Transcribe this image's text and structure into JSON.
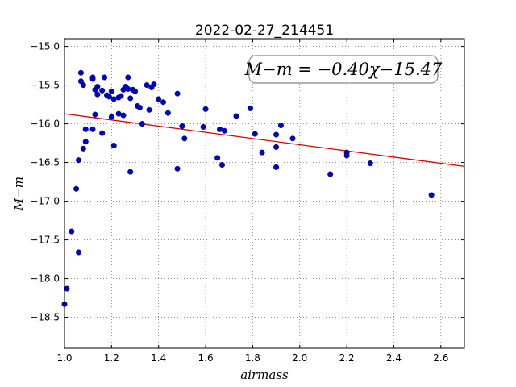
{
  "chart_data": {
    "type": "scatter",
    "title": "2022-02-27_214451",
    "xlabel": "airmass",
    "ylabel": "M−m",
    "xlim": [
      1.0,
      2.7
    ],
    "ylim": [
      -18.9,
      -14.9
    ],
    "y_inverted": true,
    "grid": true,
    "x_ticks": [
      "1.0",
      "1.2",
      "1.4",
      "1.6",
      "1.8",
      "2.0",
      "2.2",
      "2.4",
      "2.6"
    ],
    "x_tick_values": [
      1.0,
      1.2,
      1.4,
      1.6,
      1.8,
      2.0,
      2.2,
      2.4,
      2.6
    ],
    "y_ticks": [
      "−15.0",
      "−15.5",
      "−16.0",
      "−16.5",
      "−17.0",
      "−17.5",
      "−18.0",
      "−18.5"
    ],
    "y_tick_values": [
      -15.0,
      -15.5,
      -16.0,
      -16.5,
      -17.0,
      -17.5,
      -18.0,
      -18.5
    ],
    "annotation": "M−m = −0.40χ−15.47",
    "colors": {
      "points": "#0000cc",
      "fit_line": "#dd0000"
    },
    "fit": {
      "slope": -0.4,
      "intercept": -15.47
    },
    "points": [
      {
        "x": 1.0,
        "y": -18.33
      },
      {
        "x": 1.01,
        "y": -18.13
      },
      {
        "x": 1.03,
        "y": -17.39
      },
      {
        "x": 1.05,
        "y": -16.84
      },
      {
        "x": 1.06,
        "y": -17.66
      },
      {
        "x": 1.06,
        "y": -16.47
      },
      {
        "x": 1.07,
        "y": -15.34
      },
      {
        "x": 1.07,
        "y": -15.45
      },
      {
        "x": 1.08,
        "y": -15.5
      },
      {
        "x": 1.08,
        "y": -16.32
      },
      {
        "x": 1.09,
        "y": -16.23
      },
      {
        "x": 1.09,
        "y": -16.07
      },
      {
        "x": 1.12,
        "y": -15.4
      },
      {
        "x": 1.12,
        "y": -15.42
      },
      {
        "x": 1.12,
        "y": -16.07
      },
      {
        "x": 1.13,
        "y": -15.88
      },
      {
        "x": 1.13,
        "y": -15.56
      },
      {
        "x": 1.14,
        "y": -15.62
      },
      {
        "x": 1.14,
        "y": -15.52
      },
      {
        "x": 1.16,
        "y": -16.12
      },
      {
        "x": 1.16,
        "y": -15.57
      },
      {
        "x": 1.17,
        "y": -15.4
      },
      {
        "x": 1.18,
        "y": -15.63
      },
      {
        "x": 1.19,
        "y": -15.65
      },
      {
        "x": 1.2,
        "y": -15.91
      },
      {
        "x": 1.2,
        "y": -15.58
      },
      {
        "x": 1.21,
        "y": -15.68
      },
      {
        "x": 1.21,
        "y": -16.28
      },
      {
        "x": 1.23,
        "y": -15.66
      },
      {
        "x": 1.23,
        "y": -15.87
      },
      {
        "x": 1.24,
        "y": -15.64
      },
      {
        "x": 1.25,
        "y": -15.89
      },
      {
        "x": 1.25,
        "y": -15.56
      },
      {
        "x": 1.26,
        "y": -15.52
      },
      {
        "x": 1.27,
        "y": -15.4
      },
      {
        "x": 1.27,
        "y": -15.55
      },
      {
        "x": 1.28,
        "y": -15.67
      },
      {
        "x": 1.28,
        "y": -16.62
      },
      {
        "x": 1.29,
        "y": -15.56
      },
      {
        "x": 1.3,
        "y": -15.58
      },
      {
        "x": 1.31,
        "y": -15.77
      },
      {
        "x": 1.32,
        "y": -15.79
      },
      {
        "x": 1.33,
        "y": -16.0
      },
      {
        "x": 1.35,
        "y": -15.5
      },
      {
        "x": 1.36,
        "y": -15.82
      },
      {
        "x": 1.37,
        "y": -15.53
      },
      {
        "x": 1.38,
        "y": -15.49
      },
      {
        "x": 1.4,
        "y": -15.68
      },
      {
        "x": 1.42,
        "y": -15.72
      },
      {
        "x": 1.44,
        "y": -15.86
      },
      {
        "x": 1.48,
        "y": -16.58
      },
      {
        "x": 1.48,
        "y": -15.61
      },
      {
        "x": 1.5,
        "y": -16.03
      },
      {
        "x": 1.51,
        "y": -16.19
      },
      {
        "x": 1.59,
        "y": -16.04
      },
      {
        "x": 1.6,
        "y": -15.81
      },
      {
        "x": 1.65,
        "y": -16.44
      },
      {
        "x": 1.66,
        "y": -16.07
      },
      {
        "x": 1.67,
        "y": -16.53
      },
      {
        "x": 1.68,
        "y": -16.09
      },
      {
        "x": 1.73,
        "y": -15.9
      },
      {
        "x": 1.79,
        "y": -15.8
      },
      {
        "x": 1.81,
        "y": -16.13
      },
      {
        "x": 1.84,
        "y": -16.37
      },
      {
        "x": 1.9,
        "y": -16.3
      },
      {
        "x": 1.9,
        "y": -16.14
      },
      {
        "x": 1.9,
        "y": -16.56
      },
      {
        "x": 1.92,
        "y": -16.02
      },
      {
        "x": 1.97,
        "y": -16.19
      },
      {
        "x": 2.13,
        "y": -16.65
      },
      {
        "x": 2.2,
        "y": -16.37
      },
      {
        "x": 2.2,
        "y": -16.41
      },
      {
        "x": 2.3,
        "y": -16.51
      },
      {
        "x": 2.56,
        "y": -16.92
      }
    ]
  }
}
